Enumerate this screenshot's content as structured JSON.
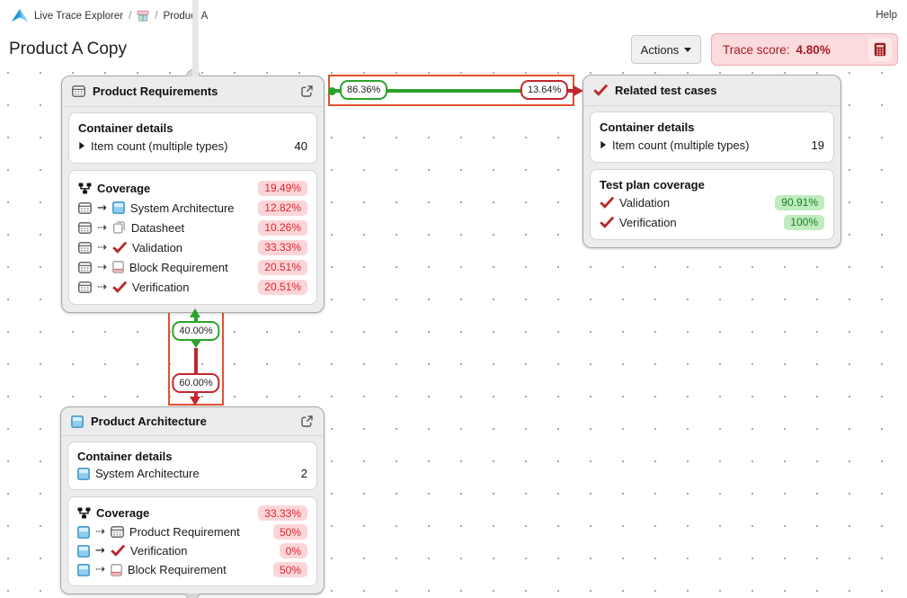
{
  "header": {
    "breadcrumb": {
      "app": "Live Trace Explorer",
      "separator": "/",
      "project": "Product A"
    },
    "help_label": "Help",
    "title": "Product A Copy",
    "actions_label": "Actions",
    "trace_score_label": "Trace score:",
    "trace_score_value": "4.80%"
  },
  "colors": {
    "edge_green": "#2ba32b",
    "edge_red": "#c2272e",
    "selection_orange": "#e0522b",
    "badge_red_bg": "#fcd5d8",
    "badge_red_text": "#e0262d",
    "badge_green_bg": "#bfecbf",
    "badge_green_text": "#1b7e22",
    "trace_score_red": "#a51c2a"
  },
  "edges": {
    "horizontal": {
      "covered_label": "86.36%",
      "uncovered_label": "13.64%"
    },
    "vertical": {
      "covered_label": "40.00%",
      "uncovered_label": "60.00%"
    }
  },
  "cards": [
    {
      "title": "Product Requirements",
      "header_icon": "requirements",
      "container_details": {
        "title": "Container details",
        "rows": [
          {
            "icons": [
              "caret"
            ],
            "label": "Item count (multiple types)",
            "value": "40"
          }
        ]
      },
      "coverage": {
        "title": "Coverage",
        "icon": "coverage-tree",
        "badge": {
          "text": "19.49%",
          "tone": "red"
        },
        "rows": [
          {
            "icons": [
              "requirements",
              "arrow-solid",
              "architecture"
            ],
            "label": "System Architecture",
            "badge": {
              "text": "12.82%",
              "tone": "red"
            }
          },
          {
            "icons": [
              "requirements",
              "arrow-dashed",
              "datasheet"
            ],
            "label": "Datasheet",
            "badge": {
              "text": "10.26%",
              "tone": "red"
            }
          },
          {
            "icons": [
              "requirements",
              "arrow-dashed",
              "check"
            ],
            "label": "Validation",
            "badge": {
              "text": "33.33%",
              "tone": "red"
            }
          },
          {
            "icons": [
              "requirements",
              "arrow-dashed",
              "block"
            ],
            "label": "Block Requirement",
            "badge": {
              "text": "20.51%",
              "tone": "red"
            }
          },
          {
            "icons": [
              "requirements",
              "arrow-dashed",
              "check"
            ],
            "label": "Verification",
            "badge": {
              "text": "20.51%",
              "tone": "red"
            }
          }
        ]
      }
    },
    {
      "title": "Related test cases",
      "header_icon": "check",
      "container_details": {
        "title": "Container details",
        "rows": [
          {
            "icons": [
              "caret"
            ],
            "label": "Item count (multiple types)",
            "value": "19"
          }
        ]
      },
      "coverage": {
        "title": "Test plan coverage",
        "rows": [
          {
            "icons": [
              "check"
            ],
            "label": "Validation",
            "badge": {
              "text": "90.91%",
              "tone": "green"
            }
          },
          {
            "icons": [
              "check"
            ],
            "label": "Verification",
            "badge": {
              "text": "100%",
              "tone": "green"
            }
          }
        ]
      }
    },
    {
      "title": "Product Architecture",
      "header_icon": "architecture",
      "container_details": {
        "title": "Container details",
        "rows": [
          {
            "icons": [
              "architecture"
            ],
            "label": "System Architecture",
            "value": "2"
          }
        ]
      },
      "coverage": {
        "title": "Coverage",
        "icon": "coverage-tree",
        "badge": {
          "text": "33.33%",
          "tone": "red"
        },
        "rows": [
          {
            "icons": [
              "architecture",
              "arrow-dashed",
              "requirements"
            ],
            "label": "Product Requirement",
            "badge": {
              "text": "50%",
              "tone": "red"
            }
          },
          {
            "icons": [
              "architecture",
              "arrow-solid",
              "check"
            ],
            "label": "Verification",
            "badge": {
              "text": "0%",
              "tone": "red"
            }
          },
          {
            "icons": [
              "architecture",
              "arrow-dashed",
              "block"
            ],
            "label": "Block Requirement",
            "badge": {
              "text": "50%",
              "tone": "red"
            }
          }
        ]
      }
    }
  ]
}
